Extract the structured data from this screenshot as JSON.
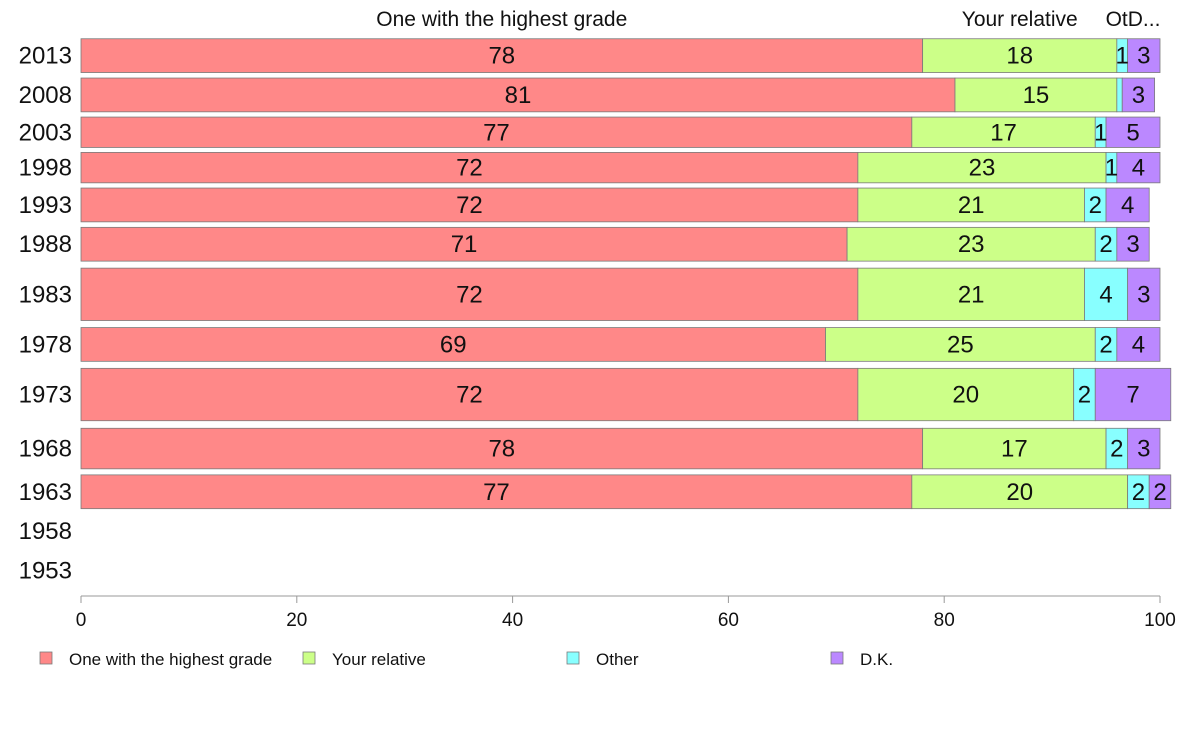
{
  "chart_data": {
    "type": "bar",
    "orientation": "horizontal",
    "stacked": true,
    "column_headers": [
      "One with the highest grade",
      "Your relative",
      "OtD..."
    ],
    "categories": [
      "2013",
      "2008",
      "2003",
      "1998",
      "1993",
      "1988",
      "1983",
      "1978",
      "1973",
      "1968",
      "1963",
      "1958",
      "1953"
    ],
    "series": [
      {
        "name": "One with the highest grade",
        "color": "#ff8888",
        "values": [
          78,
          81,
          77,
          72,
          72,
          71,
          72,
          69,
          72,
          78,
          77,
          null,
          null
        ]
      },
      {
        "name": "Your relative",
        "color": "#ccff88",
        "values": [
          18,
          15,
          17,
          23,
          21,
          23,
          21,
          25,
          20,
          17,
          20,
          null,
          null
        ]
      },
      {
        "name": "Other",
        "color": "#88ffff",
        "values": [
          1,
          0.5,
          1,
          1,
          2,
          2,
          4,
          2,
          2,
          2,
          2,
          null,
          null
        ]
      },
      {
        "name": "D.K.",
        "color": "#bb88ff",
        "values": [
          3,
          3,
          5,
          4,
          4,
          3,
          3,
          4,
          7,
          3,
          2,
          null,
          null
        ]
      }
    ],
    "data_labels": [
      [
        "78",
        "18",
        "1",
        "3"
      ],
      [
        "81",
        "15",
        "",
        "3"
      ],
      [
        "77",
        "17",
        "1",
        "5"
      ],
      [
        "72",
        "23",
        "1",
        "4"
      ],
      [
        "72",
        "21",
        "2",
        "4"
      ],
      [
        "71",
        "23",
        "2",
        "3"
      ],
      [
        "72",
        "21",
        "4",
        "3"
      ],
      [
        "69",
        "25",
        "2",
        "4"
      ],
      [
        "72",
        "20",
        "2",
        "7"
      ],
      [
        "78",
        "17",
        "2",
        "3"
      ],
      [
        "77",
        "20",
        "2",
        "2"
      ],
      [
        "",
        "",
        "",
        ""
      ],
      [
        "",
        "",
        "",
        ""
      ]
    ],
    "bar_weights": [
      1,
      1,
      0.9,
      0.9,
      1,
      1,
      1.55,
      1,
      1.55,
      1.2,
      1,
      1,
      1
    ],
    "xlim": [
      0,
      100
    ],
    "xticks": [
      "0",
      "20",
      "40",
      "60",
      "80",
      "100"
    ],
    "xlabel": "",
    "ylabel": "",
    "title": "",
    "legend": {
      "position": "bottom",
      "items": [
        "One with the highest grade",
        "Your relative",
        "Other",
        "D.K."
      ]
    },
    "grid": false
  }
}
